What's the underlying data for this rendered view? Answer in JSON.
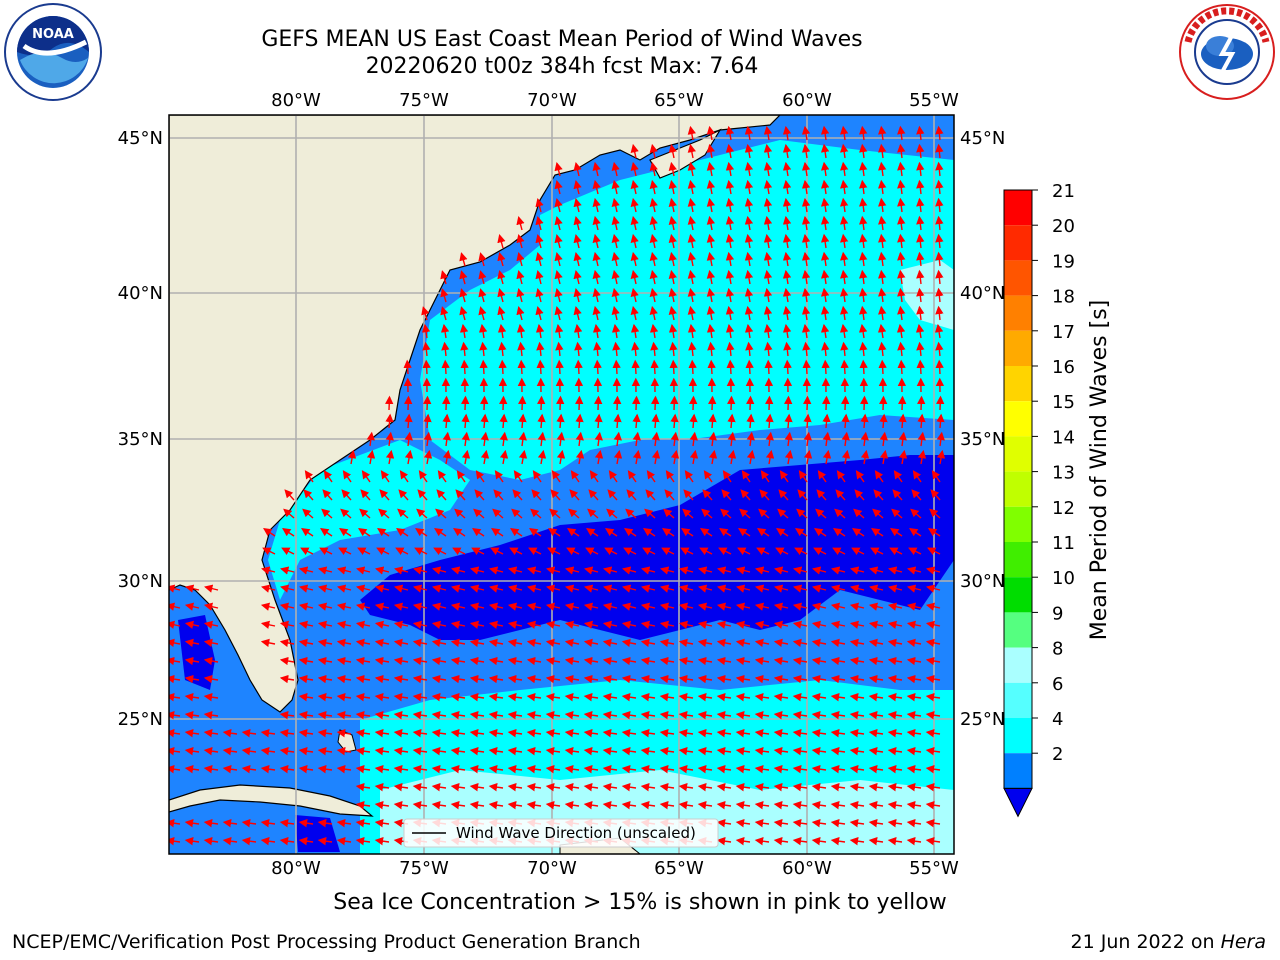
{
  "title": {
    "line1": "GEFS MEAN US East Coast Mean Period of Wind Waves",
    "line2": "20220620 t00z 384h fcst   Max: 7.64"
  },
  "map": {
    "lon_ticks_top": [
      "80°W",
      "75°W",
      "70°W",
      "65°W",
      "60°W",
      "55°W"
    ],
    "lon_ticks_bottom": [
      "80°W",
      "75°W",
      "70°W",
      "65°W",
      "60°W",
      "55°W"
    ],
    "lat_ticks_left": [
      "45°N",
      "40°N",
      "35°N",
      "30°N",
      "25°N"
    ],
    "lat_ticks_right": [
      "45°N",
      "40°N",
      "35°N",
      "30°N",
      "25°N"
    ],
    "legend_label": "Wind Wave Direction (unscaled)",
    "colors": {
      "land": "#efedd9",
      "arrow": "#ff0000",
      "grid": "#b0b0b0"
    }
  },
  "colorbar": {
    "label": "Mean Period of Wind Waves [s]",
    "ticks": [
      "21",
      "20",
      "19",
      "18",
      "17",
      "16",
      "15",
      "14",
      "13",
      "12",
      "11",
      "10",
      "9",
      "8",
      "6",
      "4",
      "2"
    ],
    "colors": [
      "#ff0000",
      "#ff2a00",
      "#ff5500",
      "#ff8000",
      "#ffaa00",
      "#ffd400",
      "#ffff00",
      "#e0ff00",
      "#c0ff00",
      "#80ff00",
      "#40ee00",
      "#00dd00",
      "#55ff80",
      "#aaffff",
      "#55ffff",
      "#00ffff",
      "#0080ff"
    ],
    "under_color": "#0000ee"
  },
  "logos": {
    "left": {
      "text": "NOAA",
      "ring_text": "NATIONAL OCEANIC AND ATMOSPHERIC ADMINISTRATION"
    },
    "right": {
      "ring_text": "NATIONAL WEATHER SERVICE"
    }
  },
  "subcaption": "Sea Ice Concentration > 15% is shown in pink to yellow",
  "footer": {
    "left": "NCEP/EMC/Verification Post Processing Product Generation Branch",
    "right_date": "21 Jun 2022 on ",
    "right_host": "Hera"
  }
}
